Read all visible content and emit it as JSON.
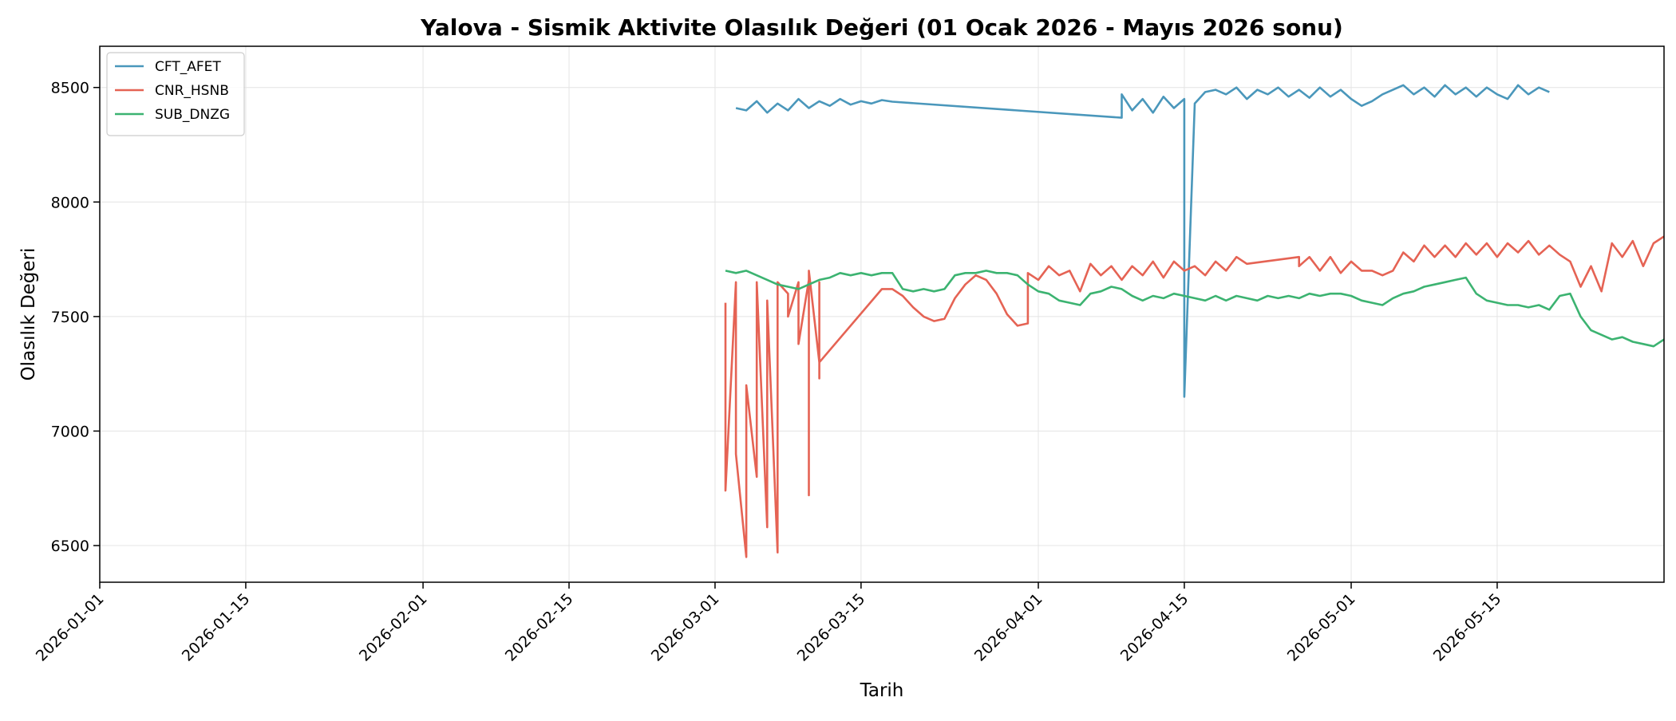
{
  "chart_data": {
    "type": "line",
    "title": "Yalova - Sismik Aktivite Olasılık Değeri (01 Ocak 2026 - Mayıs 2026 sonu)",
    "xlabel": "Tarih",
    "ylabel": "Olasılık Değeri",
    "xlim": [
      "2026-01-01",
      "2026-05-31"
    ],
    "ylim": [
      6340,
      8680
    ],
    "x_ticks": [
      "2026-01-01",
      "2026-01-15",
      "2026-02-01",
      "2026-02-15",
      "2026-03-01",
      "2026-03-15",
      "2026-04-01",
      "2026-04-15",
      "2026-05-01",
      "2026-05-15"
    ],
    "y_ticks": [
      6500,
      7000,
      7500,
      8000,
      8500
    ],
    "grid": true,
    "legend_position": "top-left",
    "series": [
      {
        "name": "CFT_AFET",
        "color": "#4a97bb",
        "points": [
          [
            "2026-03-03",
            8410
          ],
          [
            "2026-03-04",
            8400
          ],
          [
            "2026-03-05",
            8440
          ],
          [
            "2026-03-06",
            8390
          ],
          [
            "2026-03-07",
            8430
          ],
          [
            "2026-03-08",
            8400
          ],
          [
            "2026-03-09",
            8450
          ],
          [
            "2026-03-10",
            8410
          ],
          [
            "2026-03-11",
            8440
          ],
          [
            "2026-03-12",
            8420
          ],
          [
            "2026-03-13",
            8450
          ],
          [
            "2026-03-14",
            8425
          ],
          [
            "2026-03-15",
            8440
          ],
          [
            "2026-03-16",
            8430
          ],
          [
            "2026-03-17",
            8445
          ],
          [
            "2026-03-18",
            8438
          ],
          [
            "2026-04-09",
            8368
          ],
          [
            "2026-04-09",
            8470
          ],
          [
            "2026-04-10",
            8400
          ],
          [
            "2026-04-11",
            8450
          ],
          [
            "2026-04-12",
            8390
          ],
          [
            "2026-04-13",
            8460
          ],
          [
            "2026-04-14",
            8410
          ],
          [
            "2026-04-15",
            8450
          ],
          [
            "2026-04-15",
            7150
          ],
          [
            "2026-04-16",
            8430
          ],
          [
            "2026-04-17",
            8480
          ],
          [
            "2026-04-18",
            8490
          ],
          [
            "2026-04-19",
            8470
          ],
          [
            "2026-04-20",
            8500
          ],
          [
            "2026-04-21",
            8450
          ],
          [
            "2026-04-22",
            8490
          ],
          [
            "2026-04-23",
            8470
          ],
          [
            "2026-04-24",
            8500
          ],
          [
            "2026-04-25",
            8460
          ],
          [
            "2026-04-26",
            8490
          ],
          [
            "2026-04-27",
            8455
          ],
          [
            "2026-04-28",
            8500
          ],
          [
            "2026-04-29",
            8460
          ],
          [
            "2026-04-30",
            8490
          ],
          [
            "2026-05-01",
            8450
          ],
          [
            "2026-05-02",
            8420
          ],
          [
            "2026-05-03",
            8440
          ],
          [
            "2026-05-04",
            8470
          ],
          [
            "2026-05-05",
            8490
          ],
          [
            "2026-05-06",
            8510
          ],
          [
            "2026-05-07",
            8470
          ],
          [
            "2026-05-08",
            8500
          ],
          [
            "2026-05-09",
            8460
          ],
          [
            "2026-05-10",
            8510
          ],
          [
            "2026-05-11",
            8470
          ],
          [
            "2026-05-12",
            8500
          ],
          [
            "2026-05-13",
            8460
          ],
          [
            "2026-05-14",
            8500
          ],
          [
            "2026-05-15",
            8470
          ],
          [
            "2026-05-16",
            8450
          ],
          [
            "2026-05-17",
            8510
          ],
          [
            "2026-05-18",
            8470
          ],
          [
            "2026-05-19",
            8500
          ],
          [
            "2026-05-20",
            8480
          ]
        ]
      },
      {
        "name": "CNR_HSNB",
        "color": "#e56354",
        "points": [
          [
            "2026-03-02",
            7560
          ],
          [
            "2026-03-02",
            6740
          ],
          [
            "2026-03-03",
            7650
          ],
          [
            "2026-03-03",
            6900
          ],
          [
            "2026-03-04",
            6450
          ],
          [
            "2026-03-04",
            7200
          ],
          [
            "2026-03-05",
            6800
          ],
          [
            "2026-03-05",
            7650
          ],
          [
            "2026-03-06",
            6580
          ],
          [
            "2026-03-06",
            7570
          ],
          [
            "2026-03-07",
            6470
          ],
          [
            "2026-03-07",
            7650
          ],
          [
            "2026-03-08",
            7600
          ],
          [
            "2026-03-08",
            7500
          ],
          [
            "2026-03-09",
            7650
          ],
          [
            "2026-03-09",
            7380
          ],
          [
            "2026-03-10",
            7660
          ],
          [
            "2026-03-10",
            6720
          ],
          [
            "2026-03-10",
            7700
          ],
          [
            "2026-03-11",
            7300
          ],
          [
            "2026-03-11",
            7650
          ],
          [
            "2026-03-11",
            7230
          ],
          [
            "2026-03-11",
            7300
          ],
          [
            "2026-03-17",
            7620
          ],
          [
            "2026-03-18",
            7620
          ],
          [
            "2026-03-19",
            7590
          ],
          [
            "2026-03-20",
            7540
          ],
          [
            "2026-03-21",
            7500
          ],
          [
            "2026-03-22",
            7480
          ],
          [
            "2026-03-23",
            7490
          ],
          [
            "2026-03-24",
            7580
          ],
          [
            "2026-03-25",
            7640
          ],
          [
            "2026-03-26",
            7680
          ],
          [
            "2026-03-27",
            7660
          ],
          [
            "2026-03-28",
            7600
          ],
          [
            "2026-03-29",
            7510
          ],
          [
            "2026-03-30",
            7460
          ],
          [
            "2026-03-31",
            7470
          ],
          [
            "2026-03-31",
            7690
          ],
          [
            "2026-04-01",
            7660
          ],
          [
            "2026-04-02",
            7720
          ],
          [
            "2026-04-03",
            7680
          ],
          [
            "2026-04-04",
            7700
          ],
          [
            "2026-04-05",
            7610
          ],
          [
            "2026-04-06",
            7730
          ],
          [
            "2026-04-07",
            7680
          ],
          [
            "2026-04-08",
            7720
          ],
          [
            "2026-04-09",
            7660
          ],
          [
            "2026-04-10",
            7720
          ],
          [
            "2026-04-11",
            7680
          ],
          [
            "2026-04-12",
            7740
          ],
          [
            "2026-04-13",
            7670
          ],
          [
            "2026-04-14",
            7740
          ],
          [
            "2026-04-15",
            7700
          ],
          [
            "2026-04-16",
            7720
          ],
          [
            "2026-04-17",
            7680
          ],
          [
            "2026-04-18",
            7740
          ],
          [
            "2026-04-19",
            7700
          ],
          [
            "2026-04-20",
            7760
          ],
          [
            "2026-04-21",
            7730
          ],
          [
            "2026-04-26",
            7760
          ],
          [
            "2026-04-26",
            7720
          ],
          [
            "2026-04-27",
            7760
          ],
          [
            "2026-04-28",
            7700
          ],
          [
            "2026-04-29",
            7760
          ],
          [
            "2026-04-30",
            7690
          ],
          [
            "2026-05-01",
            7740
          ],
          [
            "2026-05-02",
            7700
          ],
          [
            "2026-05-03",
            7700
          ],
          [
            "2026-05-04",
            7680
          ],
          [
            "2026-05-05",
            7700
          ],
          [
            "2026-05-06",
            7780
          ],
          [
            "2026-05-07",
            7740
          ],
          [
            "2026-05-08",
            7810
          ],
          [
            "2026-05-09",
            7760
          ],
          [
            "2026-05-10",
            7810
          ],
          [
            "2026-05-11",
            7760
          ],
          [
            "2026-05-12",
            7820
          ],
          [
            "2026-05-13",
            7770
          ],
          [
            "2026-05-14",
            7820
          ],
          [
            "2026-05-15",
            7760
          ],
          [
            "2026-05-16",
            7820
          ],
          [
            "2026-05-17",
            7780
          ],
          [
            "2026-05-18",
            7830
          ],
          [
            "2026-05-19",
            7770
          ],
          [
            "2026-05-20",
            7810
          ],
          [
            "2026-05-21",
            7770
          ],
          [
            "2026-05-22",
            7740
          ],
          [
            "2026-05-23",
            7630
          ],
          [
            "2026-05-24",
            7720
          ],
          [
            "2026-05-25",
            7610
          ],
          [
            "2026-05-26",
            7820
          ],
          [
            "2026-05-27",
            7760
          ],
          [
            "2026-05-28",
            7830
          ],
          [
            "2026-05-29",
            7720
          ],
          [
            "2026-05-30",
            7820
          ],
          [
            "2026-05-31",
            7850
          ]
        ]
      },
      {
        "name": "SUB_DNZG",
        "color": "#3cb371",
        "points": [
          [
            "2026-03-02",
            7700
          ],
          [
            "2026-03-03",
            7690
          ],
          [
            "2026-03-04",
            7700
          ],
          [
            "2026-03-05",
            7680
          ],
          [
            "2026-03-06",
            7660
          ],
          [
            "2026-03-07",
            7640
          ],
          [
            "2026-03-08",
            7630
          ],
          [
            "2026-03-09",
            7620
          ],
          [
            "2026-03-10",
            7640
          ],
          [
            "2026-03-11",
            7660
          ],
          [
            "2026-03-12",
            7670
          ],
          [
            "2026-03-13",
            7690
          ],
          [
            "2026-03-14",
            7680
          ],
          [
            "2026-03-15",
            7690
          ],
          [
            "2026-03-16",
            7680
          ],
          [
            "2026-03-17",
            7690
          ],
          [
            "2026-03-18",
            7690
          ],
          [
            "2026-03-19",
            7620
          ],
          [
            "2026-03-20",
            7610
          ],
          [
            "2026-03-21",
            7620
          ],
          [
            "2026-03-22",
            7610
          ],
          [
            "2026-03-23",
            7620
          ],
          [
            "2026-03-24",
            7680
          ],
          [
            "2026-03-25",
            7690
          ],
          [
            "2026-03-26",
            7690
          ],
          [
            "2026-03-27",
            7700
          ],
          [
            "2026-03-28",
            7690
          ],
          [
            "2026-03-29",
            7690
          ],
          [
            "2026-03-30",
            7680
          ],
          [
            "2026-03-31",
            7640
          ],
          [
            "2026-04-01",
            7610
          ],
          [
            "2026-04-02",
            7600
          ],
          [
            "2026-04-03",
            7570
          ],
          [
            "2026-04-04",
            7560
          ],
          [
            "2026-04-05",
            7550
          ],
          [
            "2026-04-06",
            7600
          ],
          [
            "2026-04-07",
            7610
          ],
          [
            "2026-04-08",
            7630
          ],
          [
            "2026-04-09",
            7620
          ],
          [
            "2026-04-10",
            7590
          ],
          [
            "2026-04-11",
            7570
          ],
          [
            "2026-04-12",
            7590
          ],
          [
            "2026-04-13",
            7580
          ],
          [
            "2026-04-14",
            7600
          ],
          [
            "2026-04-15",
            7590
          ],
          [
            "2026-04-16",
            7580
          ],
          [
            "2026-04-17",
            7570
          ],
          [
            "2026-04-18",
            7590
          ],
          [
            "2026-04-19",
            7570
          ],
          [
            "2026-04-20",
            7590
          ],
          [
            "2026-04-21",
            7580
          ],
          [
            "2026-04-22",
            7570
          ],
          [
            "2026-04-23",
            7590
          ],
          [
            "2026-04-24",
            7580
          ],
          [
            "2026-04-25",
            7590
          ],
          [
            "2026-04-26",
            7580
          ],
          [
            "2026-04-27",
            7600
          ],
          [
            "2026-04-28",
            7590
          ],
          [
            "2026-04-29",
            7600
          ],
          [
            "2026-04-30",
            7600
          ],
          [
            "2026-05-01",
            7590
          ],
          [
            "2026-05-02",
            7570
          ],
          [
            "2026-05-03",
            7560
          ],
          [
            "2026-05-04",
            7550
          ],
          [
            "2026-05-05",
            7580
          ],
          [
            "2026-05-06",
            7600
          ],
          [
            "2026-05-07",
            7610
          ],
          [
            "2026-05-08",
            7630
          ],
          [
            "2026-05-09",
            7640
          ],
          [
            "2026-05-10",
            7650
          ],
          [
            "2026-05-11",
            7660
          ],
          [
            "2026-05-12",
            7670
          ],
          [
            "2026-05-13",
            7600
          ],
          [
            "2026-05-14",
            7570
          ],
          [
            "2026-05-15",
            7560
          ],
          [
            "2026-05-16",
            7550
          ],
          [
            "2026-05-17",
            7550
          ],
          [
            "2026-05-18",
            7540
          ],
          [
            "2026-05-19",
            7550
          ],
          [
            "2026-05-20",
            7530
          ],
          [
            "2026-05-21",
            7590
          ],
          [
            "2026-05-22",
            7600
          ],
          [
            "2026-05-23",
            7500
          ],
          [
            "2026-05-24",
            7440
          ],
          [
            "2026-05-25",
            7420
          ],
          [
            "2026-05-26",
            7400
          ],
          [
            "2026-05-27",
            7410
          ],
          [
            "2026-05-28",
            7390
          ],
          [
            "2026-05-29",
            7380
          ],
          [
            "2026-05-30",
            7370
          ],
          [
            "2026-05-31",
            7400
          ]
        ]
      }
    ]
  }
}
